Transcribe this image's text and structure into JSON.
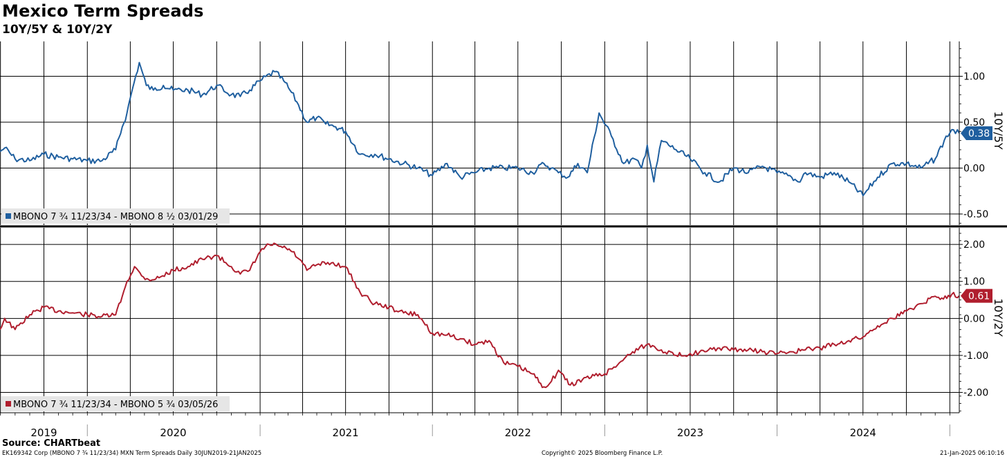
{
  "header": {
    "title": "Mexico Term Spreads",
    "subtitle": "10Y/5Y & 10Y/2Y"
  },
  "footer": {
    "source": "Source: CHARTbeat",
    "ticker_info": "EK169342 Corp (MBONO 7 ¾ 11/23/34) MXN Term Spreads  Daily 30JUN2019-21JAN2025",
    "copyright": "Copyright© 2025 Bloomberg Finance L.P.",
    "timestamp": "21-Jan-2025 06:10:16"
  },
  "colors": {
    "top_series": "#1f5f9f",
    "bottom_series": "#b01e2e"
  },
  "chart_data": [
    {
      "type": "line",
      "ylabel": "10Y/5Y",
      "ylim": [
        -0.62,
        1.38
      ],
      "yticks": [
        "1.00",
        "0.50",
        "0.00",
        "-0.50"
      ],
      "ytick_values": [
        1.0,
        0.5,
        0.0,
        -0.5
      ],
      "last_value_label": "0.38",
      "last_value": 0.38,
      "legend": "MBONO 7 ¾ 11/23/34 - MBONO 8 ½ 03/01/29",
      "legend_position": "bottom-left",
      "grid": true,
      "series": [
        {
          "name": "MBONO 7 ¾ 11/23/34 - MBONO 8 ½ 03/01/29",
          "x": [
            "2019-06-30",
            "2019-07-10",
            "2019-08-01",
            "2019-09-01",
            "2019-10-01",
            "2019-11-01",
            "2019-12-01",
            "2020-01-01",
            "2020-02-01",
            "2020-03-01",
            "2020-03-15",
            "2020-03-25",
            "2020-04-05",
            "2020-04-20",
            "2020-05-05",
            "2020-05-20",
            "2020-06-10",
            "2020-07-01",
            "2020-08-01",
            "2020-09-01",
            "2020-10-01",
            "2020-11-01",
            "2020-11-20",
            "2020-12-10",
            "2021-01-01",
            "2021-02-01",
            "2021-02-20",
            "2021-03-05",
            "2021-03-20",
            "2021-04-10",
            "2021-05-01",
            "2021-05-20",
            "2021-06-10",
            "2021-07-01",
            "2021-08-01",
            "2021-09-01",
            "2021-10-01",
            "2021-11-01",
            "2021-12-01",
            "2022-01-01",
            "2022-02-01",
            "2022-03-01",
            "2022-04-01",
            "2022-05-01",
            "2022-06-01",
            "2022-07-01",
            "2022-08-01",
            "2022-08-25",
            "2022-09-10",
            "2022-09-25",
            "2022-10-15",
            "2022-11-05",
            "2022-11-25",
            "2022-12-20",
            "2023-01-15",
            "2023-02-10",
            "2023-03-05",
            "2023-03-20",
            "2023-04-01",
            "2023-04-15",
            "2023-05-01",
            "2023-06-01",
            "2023-07-01",
            "2023-08-01",
            "2023-09-01",
            "2023-10-01",
            "2023-11-01",
            "2023-12-01",
            "2024-01-01",
            "2024-02-01",
            "2024-02-15",
            "2024-03-01",
            "2024-04-01",
            "2024-05-01",
            "2024-06-01",
            "2024-07-01",
            "2024-08-01",
            "2024-09-01",
            "2024-10-01",
            "2024-11-01",
            "2024-12-01",
            "2024-12-20",
            "2025-01-05",
            "2025-01-21"
          ],
          "values": [
            0.18,
            0.22,
            0.1,
            0.08,
            0.15,
            0.12,
            0.1,
            0.08,
            0.08,
            0.2,
            0.45,
            0.6,
            0.85,
            1.15,
            0.9,
            0.85,
            0.9,
            0.85,
            0.85,
            0.8,
            0.9,
            0.8,
            0.78,
            0.85,
            0.95,
            1.05,
            0.95,
            0.85,
            0.72,
            0.5,
            0.55,
            0.48,
            0.45,
            0.4,
            0.15,
            0.15,
            0.1,
            0.05,
            0.0,
            -0.08,
            0.05,
            -0.1,
            -0.05,
            0.0,
            0.0,
            0.0,
            -0.05,
            0.05,
            0.0,
            -0.05,
            -0.1,
            0.05,
            -0.05,
            0.6,
            0.35,
            0.05,
            0.1,
            0.0,
            0.25,
            -0.15,
            0.3,
            0.2,
            0.1,
            -0.05,
            -0.15,
            0.0,
            -0.05,
            0.02,
            -0.05,
            -0.1,
            -0.15,
            -0.05,
            -0.1,
            -0.05,
            -0.15,
            -0.3,
            -0.1,
            0.05,
            0.05,
            0.0,
            0.1,
            0.3,
            0.42,
            0.38
          ]
        }
      ]
    },
    {
      "type": "line",
      "ylabel": "10Y/2Y",
      "ylim": [
        -2.55,
        2.45
      ],
      "yticks": [
        "2.00",
        "1.00",
        "0.00",
        "-1.00",
        "-2.00"
      ],
      "ytick_values": [
        2.0,
        1.0,
        0.0,
        -1.0,
        -2.0
      ],
      "last_value_label": "0.61",
      "last_value": 0.61,
      "legend": "MBONO 7 ¾ 11/23/34 - MBONO 5 ¾ 03/05/26",
      "legend_position": "bottom-left",
      "grid": true,
      "series": [
        {
          "name": "MBONO 7 ¾ 11/23/34 - MBONO 5 ¾ 03/05/26",
          "x": [
            "2019-06-30",
            "2019-07-10",
            "2019-08-01",
            "2019-09-01",
            "2019-10-01",
            "2019-11-01",
            "2019-12-01",
            "2020-01-01",
            "2020-02-01",
            "2020-03-01",
            "2020-03-15",
            "2020-03-25",
            "2020-04-10",
            "2020-04-25",
            "2020-05-10",
            "2020-06-01",
            "2020-07-01",
            "2020-08-01",
            "2020-09-01",
            "2020-10-01",
            "2020-11-01",
            "2020-11-20",
            "2020-12-10",
            "2021-01-01",
            "2021-01-20",
            "2021-02-10",
            "2021-02-25",
            "2021-03-10",
            "2021-03-25",
            "2021-04-10",
            "2021-05-01",
            "2021-06-01",
            "2021-07-01",
            "2021-08-01",
            "2021-09-01",
            "2021-10-01",
            "2021-11-01",
            "2021-12-01",
            "2022-01-01",
            "2022-02-01",
            "2022-03-01",
            "2022-04-01",
            "2022-05-01",
            "2022-06-01",
            "2022-07-01",
            "2022-08-01",
            "2022-08-25",
            "2022-09-10",
            "2022-09-25",
            "2022-10-20",
            "2022-11-15",
            "2022-12-10",
            "2023-01-01",
            "2023-02-01",
            "2023-03-01",
            "2023-04-01",
            "2023-05-01",
            "2023-06-01",
            "2023-07-01",
            "2023-08-01",
            "2023-09-01",
            "2023-10-01",
            "2023-11-01",
            "2023-12-01",
            "2024-01-01",
            "2024-02-01",
            "2024-03-01",
            "2024-04-01",
            "2024-05-01",
            "2024-06-01",
            "2024-07-01",
            "2024-08-01",
            "2024-09-01",
            "2024-10-01",
            "2024-11-01",
            "2024-12-01",
            "2024-12-15",
            "2025-01-05",
            "2025-01-21"
          ],
          "values": [
            -0.3,
            0.0,
            -0.3,
            0.1,
            0.3,
            0.2,
            0.15,
            0.1,
            0.05,
            0.1,
            0.6,
            1.0,
            1.4,
            1.15,
            1.05,
            1.1,
            1.3,
            1.4,
            1.6,
            1.7,
            1.4,
            1.2,
            1.3,
            1.8,
            2.0,
            1.95,
            1.9,
            1.8,
            1.6,
            1.3,
            1.45,
            1.5,
            1.4,
            0.7,
            0.4,
            0.3,
            0.15,
            0.1,
            -0.4,
            -0.45,
            -0.55,
            -0.7,
            -0.6,
            -1.2,
            -1.3,
            -1.5,
            -1.85,
            -1.7,
            -1.4,
            -1.8,
            -1.65,
            -1.55,
            -1.5,
            -1.2,
            -0.9,
            -0.7,
            -0.85,
            -1.0,
            -0.95,
            -0.9,
            -0.8,
            -0.85,
            -0.85,
            -0.9,
            -0.95,
            -0.9,
            -0.85,
            -0.8,
            -0.7,
            -0.6,
            -0.5,
            -0.2,
            0.0,
            0.2,
            0.4,
            0.6,
            0.55,
            0.65,
            0.61
          ]
        }
      ]
    }
  ],
  "x_axis": {
    "year_labels": [
      "2019",
      "2020",
      "2021",
      "2022",
      "2023",
      "2024"
    ],
    "year_label_dates": [
      "2019-10-01",
      "2020-07-01",
      "2021-07-01",
      "2022-07-01",
      "2023-07-01",
      "2024-07-01"
    ],
    "year_boundaries": [
      "2020-01-01",
      "2021-01-01",
      "2022-01-01",
      "2023-01-01",
      "2024-01-01",
      "2025-01-01"
    ],
    "range": [
      "2019-06-30",
      "2025-01-21"
    ]
  }
}
